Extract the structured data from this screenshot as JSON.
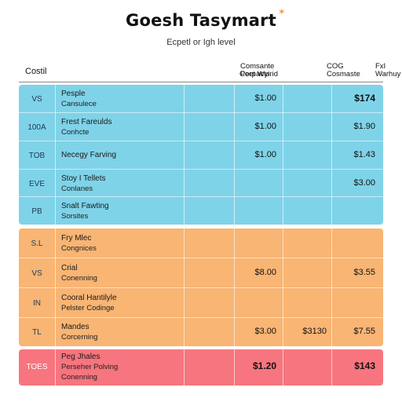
{
  "title": "Goesh Tasymart",
  "subtitle": "Ecpetl or Igh level",
  "header": {
    "first": "Costil",
    "col1_line1": "Comsante",
    "col1_line2": "Perpacts",
    "col2": "Coet Wyirid",
    "col3_line1": "COG",
    "col3_line2": "Cosmaste",
    "col4_line1": "FxI",
    "col4_line2": "Warhuy"
  },
  "colors": {
    "blue": "#7fd3e8",
    "orange": "#f8b574",
    "red": "#f7757e"
  },
  "sections": [
    {
      "name": "blue",
      "rows": [
        {
          "code": "VS",
          "line1": "Pesple",
          "line2": "Cansulece",
          "v1": "$1.00",
          "v2": "",
          "v3": "$174",
          "v3_bold": true
        },
        {
          "code": "100A",
          "line1": "Frest Fareulds",
          "line2": "Conhcte",
          "v1": "$1.00",
          "v2": "",
          "v3": "$1.90",
          "v3_bold": false
        },
        {
          "code": "TOB",
          "line1": "Necegy Farving",
          "line2": "",
          "v1": "$1.00",
          "v2": "",
          "v3": "$1.43",
          "v3_bold": false
        },
        {
          "code": "EVE",
          "line1": "Stoy I Tellets",
          "line2": "Conlanes",
          "v1": "",
          "v2": "",
          "v3": "$3.00",
          "v3_bold": false
        },
        {
          "code": "PB",
          "line1": "Snalt Fawting",
          "line2": "Sorsites",
          "v1": "",
          "v2": "",
          "v3": "",
          "v3_bold": false
        }
      ]
    },
    {
      "name": "orange",
      "rows": [
        {
          "code": "S.L",
          "line1": "Fry Mlec",
          "line2": "Congnices",
          "v1": "",
          "v2": "",
          "v3": "",
          "v3_bold": false
        },
        {
          "code": "VS",
          "line1": "Crial",
          "line2": "Conenning",
          "v1": "$8.00",
          "v2": "",
          "v3": "$3.55",
          "v3_bold": false
        },
        {
          "code": "IN",
          "line1": "Cooral Hantilyle",
          "line2": "Pelster Codinge",
          "v1": "",
          "v2": "",
          "v3": "",
          "v3_bold": false
        },
        {
          "code": "TL",
          "line1": "Mandes",
          "line2": "Corcerning",
          "v1": "$3.00",
          "v2": "$3130",
          "v3": "$7.55",
          "v3_bold": false
        }
      ]
    },
    {
      "name": "red",
      "rows": [
        {
          "code": "TOES",
          "line1": "Peg Jhales",
          "line2": "Perseher Polving",
          "line3": "Conenning",
          "v1": "$1.20",
          "v2": "",
          "v3": "$143",
          "v3_bold": true
        }
      ]
    }
  ]
}
